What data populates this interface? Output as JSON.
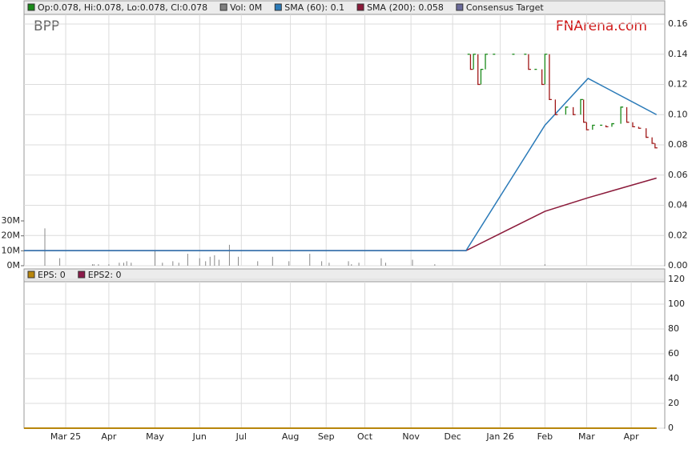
{
  "chart_data": [
    {
      "type": "stock",
      "ticker": "BPP",
      "brand": "FNArena.com",
      "xlim": [
        0,
        430
      ],
      "ylim": [
        0,
        0.16
      ],
      "yticks": [
        {
          "value": 0,
          "label": "0.00"
        },
        0.02,
        0.04,
        0.06,
        0.08,
        {
          "value": 0.1,
          "label": "0.10"
        },
        0.12,
        0.14,
        0.16
      ],
      "volume": {
        "ylim": [
          0,
          30
        ],
        "yticks": [
          {
            "value": 0,
            "label": "0M"
          },
          {
            "value": 10,
            "label": "10M"
          },
          {
            "value": 20,
            "label": "20M"
          },
          {
            "value": 30,
            "label": "30M"
          }
        ],
        "x": [
          14,
          24,
          46,
          47,
          50,
          57,
          64,
          67,
          69,
          72,
          88,
          93,
          100,
          104,
          110,
          118,
          122,
          125,
          128,
          131,
          138,
          144,
          157,
          167,
          178,
          192,
          200,
          205,
          218,
          220,
          225,
          240,
          243,
          261,
          276,
          350
        ],
        "values": [
          25,
          5,
          1,
          1,
          1,
          1,
          2,
          2,
          3,
          2,
          10,
          2,
          3,
          2,
          8,
          5,
          3,
          6,
          7,
          4,
          14,
          6,
          3,
          6,
          3,
          8,
          3,
          2,
          3,
          1,
          2,
          5,
          2,
          4,
          1,
          1
        ]
      },
      "series": [
        {
          "name": "Op:0.078, Hi:0.078, Lo:0.078, Cl:0.078",
          "color": "#1a8a1a",
          "down_color": "#a01818",
          "x": [
            298,
            300,
            302,
            305,
            307,
            310,
            315,
            328,
            336,
            339,
            343,
            348,
            350,
            353,
            357,
            364,
            369,
            374,
            376,
            378,
            382,
            387,
            391,
            395,
            401,
            405,
            409,
            413,
            418,
            422,
            424
          ],
          "values": [
            0.14,
            0.13,
            0.14,
            0.12,
            0.13,
            0.14,
            0.14,
            0.14,
            0.14,
            0.13,
            0.13,
            0.12,
            0.14,
            0.11,
            0.1,
            0.105,
            0.1,
            0.11,
            0.095,
            0.09,
            0.093,
            0.093,
            0.092,
            0.094,
            0.105,
            0.095,
            0.092,
            0.091,
            0.085,
            0.081,
            0.078
          ]
        },
        {
          "name": "Vol: 0M",
          "color": "#808080"
        },
        {
          "name": "SMA (60): 0.1",
          "color": "#2a7ab8",
          "x": [
            0,
            297,
            350,
            379,
            425
          ],
          "values": [
            0.01,
            0.01,
            0.093,
            0.124,
            0.1
          ]
        },
        {
          "name": "SMA (200): 0.058",
          "color": "#8b1a3a",
          "x": [
            0,
            297,
            350,
            379,
            425
          ],
          "values": [
            0.01,
            0.01,
            0.036,
            0.045,
            0.058
          ]
        },
        {
          "name": "Consensus Target",
          "color": "#6a6a9a"
        }
      ]
    },
    {
      "type": "line",
      "xlim": [
        0,
        430
      ],
      "ylim": [
        0,
        120
      ],
      "yticks": [
        0,
        20,
        40,
        60,
        80,
        100,
        120
      ],
      "xticks": [
        {
          "value": 28,
          "label": "Mar 25"
        },
        {
          "value": 57,
          "label": "Apr"
        },
        {
          "value": 88,
          "label": "May"
        },
        {
          "value": 118,
          "label": "Jun"
        },
        {
          "value": 146,
          "label": "Jul"
        },
        {
          "value": 179,
          "label": "Aug"
        },
        {
          "value": 203,
          "label": "Sep"
        },
        {
          "value": 229,
          "label": "Oct"
        },
        {
          "value": 260,
          "label": "Nov"
        },
        {
          "value": 288,
          "label": "Dec"
        },
        {
          "value": 320,
          "label": "Jan 26"
        },
        {
          "value": 350,
          "label": "Feb"
        },
        {
          "value": 378,
          "label": "Mar"
        },
        {
          "value": 408,
          "label": "Apr"
        }
      ],
      "series": [
        {
          "name": "EPS: 0",
          "color": "#b8860b",
          "x": [
            0,
            425
          ],
          "values": [
            0,
            0
          ]
        },
        {
          "name": "EPS2: 0",
          "color": "#8b1a4a",
          "x": [
            0,
            425
          ],
          "values": [
            0,
            0
          ]
        }
      ]
    }
  ]
}
